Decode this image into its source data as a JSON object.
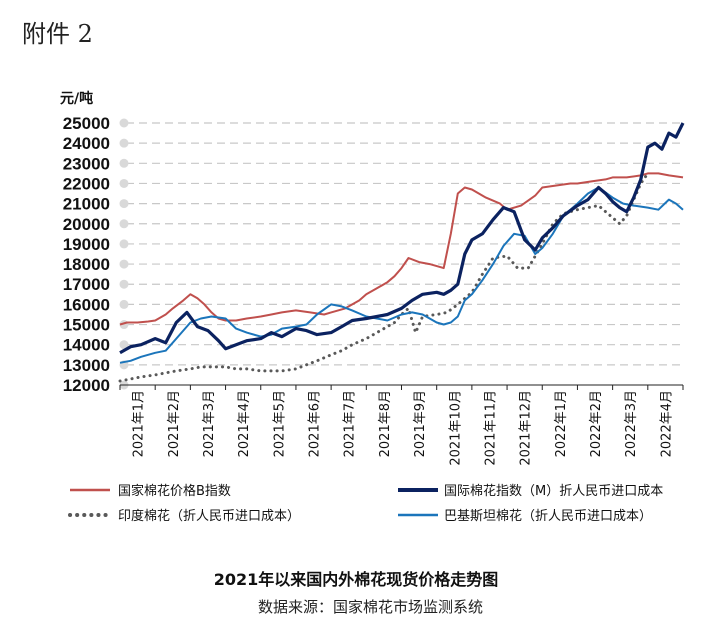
{
  "header": {
    "attachment": "附件 2"
  },
  "chart_data": {
    "type": "line",
    "title": "2021年以来国内外棉花现货价格走势图",
    "source": "数据来源：国家棉花市场监测系统",
    "ylabel": "元/吨",
    "ylim": [
      12000,
      25000
    ],
    "yticks": [
      12000,
      13000,
      14000,
      15000,
      16000,
      17000,
      18000,
      19000,
      20000,
      21000,
      22000,
      23000,
      24000,
      25000
    ],
    "xlim": [
      0,
      16
    ],
    "categories": [
      "2021年1月",
      "2021年2月",
      "2021年3月",
      "2021年4月",
      "2021年5月",
      "2021年6月",
      "2021年7月",
      "2021年8月",
      "2021年9月",
      "2021年10月",
      "2021年11月",
      "2021年12月",
      "2022年1月",
      "2022年2月",
      "2022年3月",
      "2022年4月"
    ],
    "grid": true,
    "legend_position": "bottom",
    "series": [
      {
        "name": "国家棉花价格B指数",
        "color": "#c0504d",
        "style": "solid",
        "x": [
          0,
          0.2,
          0.5,
          0.8,
          1,
          1.3,
          1.5,
          1.8,
          2,
          2.2,
          2.4,
          2.6,
          2.8,
          3,
          3.3,
          3.6,
          4,
          4.3,
          4.6,
          5,
          5.4,
          5.8,
          6,
          6.4,
          6.8,
          7,
          7.3,
          7.6,
          7.8,
          8,
          8.2,
          8.5,
          8.8,
          9,
          9.2,
          9.4,
          9.6,
          9.8,
          10,
          10.4,
          10.8,
          11,
          11.4,
          11.8,
          12,
          12.4,
          12.8,
          13,
          13.4,
          13.8,
          14,
          14.4,
          14.8,
          15,
          15.3,
          15.6,
          16
        ],
        "values": [
          15000,
          15100,
          15100,
          15150,
          15200,
          15500,
          15800,
          16200,
          16500,
          16300,
          16000,
          15600,
          15300,
          15200,
          15200,
          15300,
          15400,
          15500,
          15600,
          15700,
          15600,
          15500,
          15600,
          15800,
          16200,
          16500,
          16800,
          17100,
          17400,
          17800,
          18300,
          18100,
          18000,
          17900,
          17800,
          19500,
          21500,
          21800,
          21700,
          21300,
          21000,
          20700,
          20900,
          21400,
          21800,
          21900,
          22000,
          22000,
          22100,
          22200,
          22300,
          22300,
          22400,
          22500,
          22500,
          22400,
          22300
        ]
      },
      {
        "name": "国际棉花指数（M）折人民币进口成本",
        "color": "#0b2260",
        "style": "solid",
        "x": [
          0,
          0.3,
          0.6,
          1,
          1.3,
          1.6,
          1.9,
          2.2,
          2.5,
          2.8,
          3,
          3.3,
          3.6,
          4,
          4.3,
          4.6,
          5,
          5.3,
          5.6,
          6,
          6.3,
          6.6,
          7,
          7.3,
          7.6,
          8,
          8.3,
          8.6,
          9,
          9.2,
          9.4,
          9.6,
          9.8,
          10,
          10.3,
          10.6,
          10.9,
          11.2,
          11.5,
          11.8,
          12,
          12.3,
          12.6,
          13,
          13.3,
          13.6,
          13.8,
          14,
          14.2,
          14.4,
          14.6,
          14.8,
          15,
          15.2,
          15.4,
          15.6,
          15.8,
          16
        ],
        "values": [
          13600,
          13900,
          14000,
          14300,
          14100,
          15100,
          15600,
          14900,
          14700,
          14200,
          13800,
          14000,
          14200,
          14300,
          14600,
          14400,
          14800,
          14700,
          14500,
          14600,
          14900,
          15200,
          15300,
          15400,
          15500,
          15800,
          16200,
          16500,
          16600,
          16500,
          16700,
          17000,
          18500,
          19200,
          19500,
          20200,
          20800,
          20600,
          19200,
          18700,
          19300,
          19800,
          20400,
          20900,
          21200,
          21800,
          21500,
          21100,
          20800,
          20600,
          21300,
          22200,
          23800,
          24000,
          23700,
          24500,
          24300,
          25000
        ]
      },
      {
        "name": "印度棉花（折人民币进口成本）",
        "color": "#595959",
        "style": "dotted",
        "x": [
          0,
          0.3,
          0.6,
          1,
          1.3,
          1.6,
          2,
          2.3,
          2.6,
          3,
          3.3,
          3.6,
          4,
          4.3,
          4.6,
          5,
          5.3,
          5.6,
          6,
          6.3,
          6.6,
          7,
          7.3,
          7.6,
          7.8,
          8,
          8.2,
          8.4,
          8.6,
          9,
          9.3,
          9.6,
          10,
          10.3,
          10.6,
          11,
          11.3,
          11.6,
          12,
          12.3,
          12.6,
          13,
          13.3,
          13.6,
          14,
          14.2,
          14.4,
          14.6,
          14.8,
          15
        ],
        "values": [
          12200,
          12300,
          12400,
          12500,
          12600,
          12700,
          12800,
          12900,
          12900,
          12900,
          12800,
          12800,
          12700,
          12700,
          12700,
          12800,
          13000,
          13200,
          13500,
          13700,
          14000,
          14300,
          14600,
          14900,
          15100,
          15500,
          15800,
          14600,
          15400,
          15500,
          15600,
          16000,
          16600,
          17500,
          18300,
          18400,
          17800,
          17800,
          19000,
          20000,
          20500,
          20700,
          20800,
          20900,
          20300,
          20000,
          20400,
          21200,
          22000,
          22500
        ]
      },
      {
        "name": "巴基斯坦棉花（折人民币进口成本）",
        "color": "#1b75bb",
        "style": "solid",
        "x": [
          0,
          0.3,
          0.6,
          1,
          1.3,
          1.6,
          2,
          2.3,
          2.6,
          3,
          3.3,
          3.6,
          4,
          4.3,
          4.6,
          5,
          5.3,
          5.6,
          6,
          6.3,
          6.6,
          7,
          7.3,
          7.6,
          8,
          8.3,
          8.6,
          9,
          9.2,
          9.4,
          9.6,
          9.8,
          10,
          10.3,
          10.6,
          10.9,
          11.2,
          11.5,
          11.8,
          12,
          12.3,
          12.6,
          13,
          13.3,
          13.6,
          14,
          14.3,
          14.6,
          15,
          15.3,
          15.6,
          15.8,
          16
        ],
        "values": [
          13100,
          13200,
          13400,
          13600,
          13700,
          14300,
          15100,
          15300,
          15400,
          15300,
          14800,
          14600,
          14400,
          14500,
          14800,
          14900,
          15000,
          15500,
          16000,
          15900,
          15700,
          15400,
          15300,
          15200,
          15500,
          15600,
          15500,
          15100,
          15000,
          15100,
          15400,
          16200,
          16500,
          17200,
          18000,
          18900,
          19500,
          19400,
          18500,
          18800,
          19500,
          20400,
          21000,
          21500,
          21800,
          21300,
          21000,
          20900,
          20800,
          20700,
          21200,
          21000,
          20700
        ]
      }
    ]
  }
}
